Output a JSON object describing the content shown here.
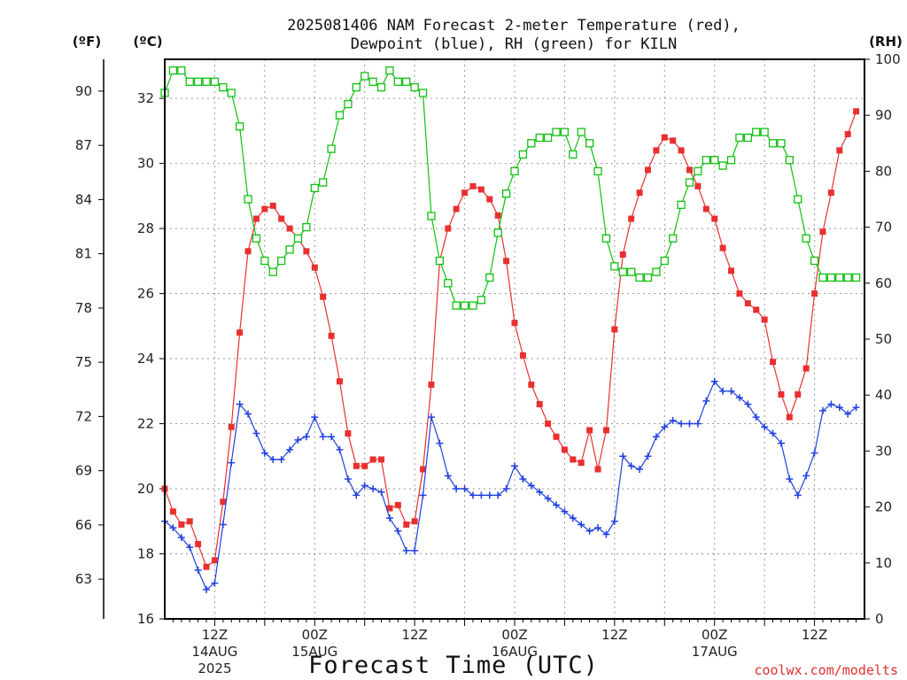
{
  "title_line1": "2025081406 NAM Forecast 2-meter Temperature (red),",
  "title_line2": "Dewpoint (blue), RH (green) for KILN",
  "unit_f": "(ºF)",
  "unit_c": "(ºC)",
  "unit_rh": "(RH)",
  "xlabel": "Forecast Time (UTC)",
  "credit": "coolwx.com/modelts",
  "colors": {
    "temperature": "#e83030",
    "dewpoint": "#2040e0",
    "rh": "#10c010"
  },
  "chart_data": {
    "type": "line",
    "x_unit": "hours after 2025-08-14 06Z",
    "x_range": [
      0,
      84
    ],
    "x_ticks": [
      {
        "x": 6,
        "label": "12Z",
        "label2": "14AUG",
        "label3": "2025"
      },
      {
        "x": 18,
        "label": "00Z",
        "label2": "15AUG",
        "label3": ""
      },
      {
        "x": 30,
        "label": "12Z",
        "label2": "",
        "label3": ""
      },
      {
        "x": 42,
        "label": "00Z",
        "label2": "16AUG",
        "label3": ""
      },
      {
        "x": 54,
        "label": "12Z",
        "label2": "",
        "label3": ""
      },
      {
        "x": 66,
        "label": "00Z",
        "label2": "17AUG",
        "label3": ""
      },
      {
        "x": 78,
        "label": "12Z",
        "label2": "",
        "label3": ""
      }
    ],
    "y_left_c": {
      "range": [
        16,
        33.2
      ],
      "ticks": [
        16,
        18,
        20,
        22,
        24,
        26,
        28,
        30,
        32
      ]
    },
    "y_left_f": {
      "ticks": [
        63,
        66,
        69,
        72,
        75,
        78,
        81,
        84,
        87,
        90
      ]
    },
    "y_right_rh": {
      "range": [
        0,
        100
      ],
      "ticks": [
        0,
        10,
        20,
        30,
        40,
        50,
        60,
        70,
        80,
        90,
        100
      ]
    },
    "grid": true,
    "series": [
      {
        "name": "Temperature",
        "units": "°C",
        "marker": "filled-square",
        "values": [
          20.0,
          19.3,
          18.9,
          19.0,
          18.3,
          17.6,
          17.8,
          19.6,
          21.9,
          24.8,
          27.3,
          28.3,
          28.6,
          28.7,
          28.3,
          28.0,
          27.7,
          27.3,
          26.8,
          25.9,
          24.7,
          23.3,
          21.7,
          20.7,
          20.7,
          20.9,
          20.9,
          19.4,
          19.5,
          18.9,
          19.0,
          20.6,
          23.2,
          27.0,
          28.0,
          28.6,
          29.1,
          29.3,
          29.2,
          28.9,
          28.4,
          27.0,
          25.1,
          24.1,
          23.2,
          22.6,
          22.0,
          21.6,
          21.2,
          20.9,
          20.8,
          21.8,
          20.6,
          21.8,
          24.9,
          27.2,
          28.3,
          29.1,
          29.8,
          30.4,
          30.8,
          30.7,
          30.4,
          29.8,
          29.3,
          28.6,
          28.3,
          27.4,
          26.7,
          26.0,
          25.7,
          25.5,
          25.2,
          23.9,
          22.9,
          22.2,
          22.9,
          23.7,
          26.0,
          27.9,
          29.1,
          30.4,
          30.9,
          31.6
        ]
      },
      {
        "name": "Dewpoint",
        "units": "°C",
        "marker": "plus",
        "values": [
          19.0,
          18.8,
          18.5,
          18.2,
          17.5,
          16.9,
          17.1,
          18.9,
          20.8,
          22.6,
          22.3,
          21.7,
          21.1,
          20.9,
          20.9,
          21.2,
          21.5,
          21.6,
          22.2,
          21.6,
          21.6,
          21.2,
          20.3,
          19.8,
          20.1,
          20.0,
          19.9,
          19.1,
          18.7,
          18.1,
          18.1,
          19.8,
          22.2,
          21.4,
          20.4,
          20.0,
          20.0,
          19.8,
          19.8,
          19.8,
          19.8,
          20.0,
          20.7,
          20.3,
          20.1,
          19.9,
          19.7,
          19.5,
          19.3,
          19.1,
          18.9,
          18.7,
          18.8,
          18.6,
          19.0,
          21.0,
          20.7,
          20.6,
          21.0,
          21.6,
          21.9,
          22.1,
          22.0,
          22.0,
          22.0,
          22.7,
          23.3,
          23.0,
          23.0,
          22.8,
          22.6,
          22.2,
          21.9,
          21.7,
          21.4,
          20.3,
          19.8,
          20.4,
          21.1,
          22.4,
          22.6,
          22.5,
          22.3,
          22.5
        ]
      },
      {
        "name": "RH",
        "units": "%",
        "marker": "open-square",
        "values": [
          94,
          98,
          98,
          96,
          96,
          96,
          96,
          95,
          94,
          88,
          75,
          68,
          64,
          62,
          64,
          66,
          68,
          70,
          77,
          78,
          84,
          90,
          92,
          95,
          97,
          96,
          95,
          98,
          96,
          96,
          95,
          94,
          72,
          64,
          60,
          56,
          56,
          56,
          57,
          61,
          69,
          76,
          80,
          83,
          85,
          86,
          86,
          87,
          87,
          83,
          87,
          85,
          80,
          68,
          63,
          62,
          62,
          61,
          61,
          62,
          64,
          68,
          74,
          78,
          80,
          82,
          82,
          81,
          82,
          86,
          86,
          87,
          87,
          85,
          85,
          82,
          75,
          68,
          64,
          61,
          61,
          61,
          61,
          61
        ]
      }
    ]
  }
}
